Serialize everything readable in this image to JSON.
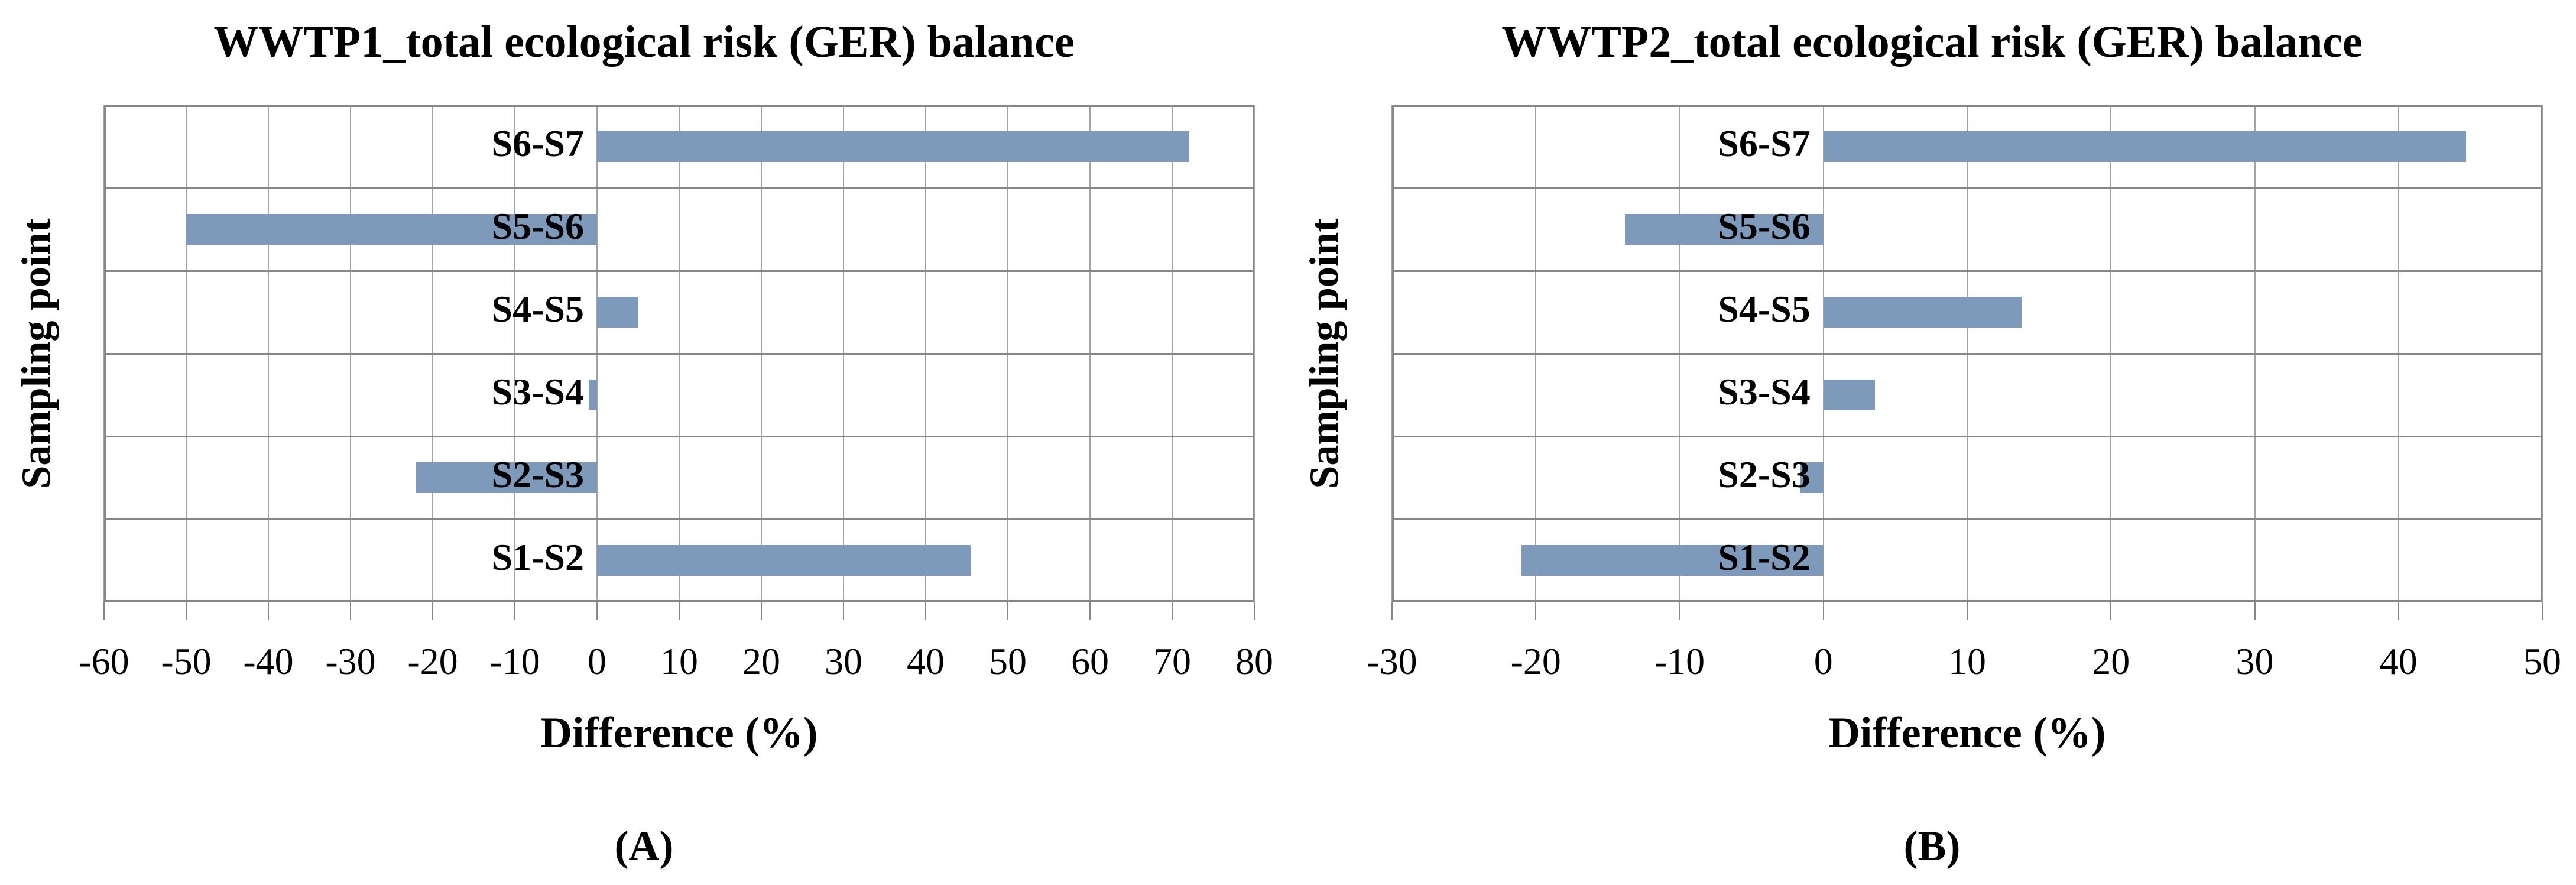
{
  "colors": {
    "bar_fill": "#7D9ABA",
    "vertical_gridline": "#a3a3a3",
    "row_separator": "#878787",
    "plot_border": "#878787",
    "text": "#000000",
    "background": "#ffffff"
  },
  "chart_data": [
    {
      "type": "bar",
      "orientation": "horizontal",
      "title": "WWTP1_total ecological risk (GER) balance",
      "xlabel": "Difference (%)",
      "ylabel": "Sampling point",
      "caption": "(A)",
      "categories": [
        "S6-S7",
        "S5-S6",
        "S4-S5",
        "S3-S4",
        "S2-S3",
        "S1-S2"
      ],
      "values": [
        72,
        -50,
        5,
        -1,
        -22,
        45.5
      ],
      "xlim": [
        -60,
        80
      ],
      "xticks": [
        -60,
        -50,
        -40,
        -30,
        -20,
        -10,
        0,
        10,
        20,
        30,
        40,
        50,
        60,
        70,
        80
      ],
      "grid": true,
      "legend": false
    },
    {
      "type": "bar",
      "orientation": "horizontal",
      "title": "WWTP2_total ecological risk (GER) balance",
      "xlabel": "Difference (%)",
      "ylabel": "Sampling point",
      "caption": "(B)",
      "categories": [
        "S6-S7",
        "S5-S6",
        "S4-S5",
        "S3-S4",
        "S2-S3",
        "S1-S2"
      ],
      "values": [
        44.7,
        -13.8,
        13.8,
        3.6,
        -1.6,
        -21
      ],
      "xlim": [
        -30,
        50
      ],
      "xticks": [
        -30,
        -20,
        -10,
        0,
        10,
        20,
        30,
        40,
        50
      ],
      "grid": true,
      "legend": false
    }
  ]
}
